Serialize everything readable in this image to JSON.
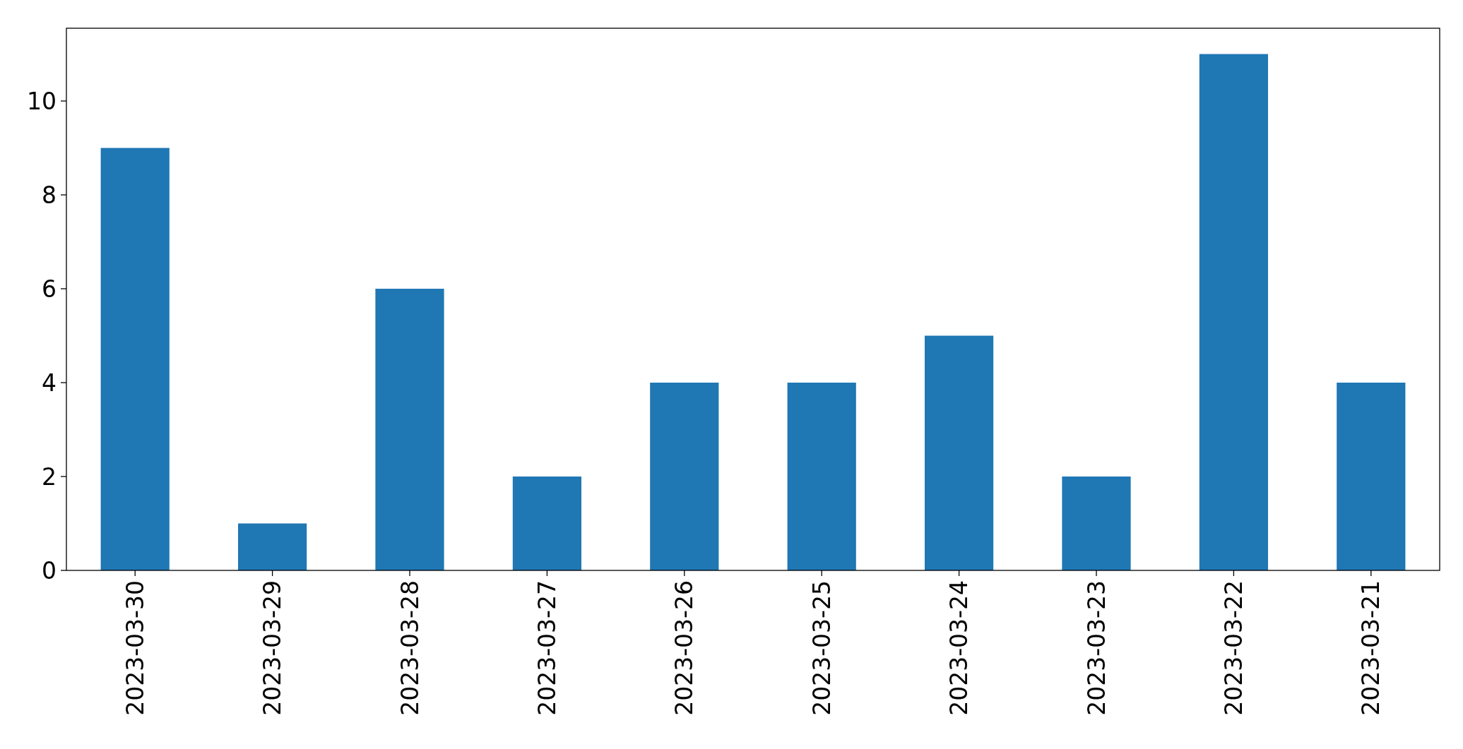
{
  "chart_data": {
    "type": "bar",
    "categories": [
      "2023-03-30",
      "2023-03-29",
      "2023-03-28",
      "2023-03-27",
      "2023-03-26",
      "2023-03-25",
      "2023-03-24",
      "2023-03-23",
      "2023-03-22",
      "2023-03-21"
    ],
    "values": [
      9,
      1,
      6,
      2,
      4,
      4,
      5,
      2,
      11,
      4
    ],
    "color": "#1f77b4",
    "ylim": [
      0,
      11.55
    ],
    "yticks": [
      0,
      2,
      4,
      6,
      8,
      10
    ],
    "grid": false
  }
}
